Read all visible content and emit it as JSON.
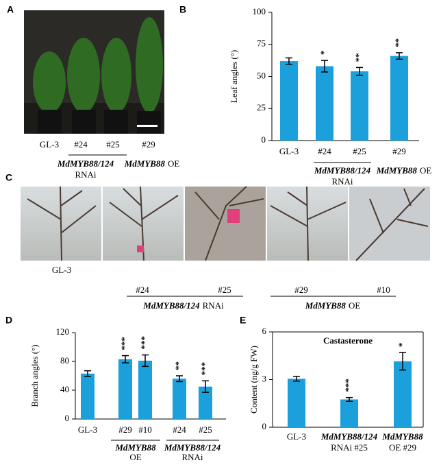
{
  "panels": {
    "A": {
      "label": "A",
      "categories": [
        "GL-3",
        "#24",
        "#25",
        "#29"
      ],
      "groups": [
        {
          "gene": "MdMYB88/124",
          "suffix": "RNAi"
        },
        {
          "gene": "MdMYB88",
          "suffix": "OE"
        }
      ]
    },
    "C": {
      "label": "C",
      "categories": [
        "GL-3",
        "#24",
        "#25",
        "#29",
        "#10"
      ],
      "groups": [
        {
          "gene": "MdMYB88/124",
          "suffix": "RNAi"
        },
        {
          "gene": "MdMYB88",
          "suffix": "OE"
        }
      ]
    }
  },
  "chart_data": [
    {
      "type": "bar",
      "label": "B",
      "ylabel": "Leaf angles (°)",
      "color": "#1ca0dc",
      "categories": [
        "GL-3",
        "#24",
        "#25",
        "#29"
      ],
      "values": [
        62,
        58,
        54,
        66
      ],
      "errors": [
        2.5,
        4.5,
        3,
        2.5
      ],
      "significance": [
        null,
        "*",
        "**",
        "**"
      ],
      "groups": [
        {
          "gene": "MdMYB88/124",
          "suffix": "RNAi"
        },
        {
          "gene": "MdMYB88",
          "suffix": "OE"
        }
      ],
      "ylim": [
        0,
        100
      ],
      "yticks": [
        0,
        25,
        50,
        75,
        100
      ],
      "box": false
    },
    {
      "type": "bar",
      "label": "D",
      "ylabel": "Branch angles (°)",
      "color": "#1ca0dc",
      "categories": [
        "GL-3",
        "#29",
        "#10",
        "#24",
        "#25"
      ],
      "values": [
        63,
        83,
        81,
        56,
        45
      ],
      "errors": [
        4,
        5,
        8,
        4,
        8
      ],
      "significance": [
        null,
        "***",
        "***",
        "**",
        "***"
      ],
      "groups": [
        {
          "gene": "MdMYB88",
          "suffix": "OE"
        },
        {
          "gene": "MdMYB88/124",
          "suffix": "RNAi"
        }
      ],
      "ylim": [
        0,
        120
      ],
      "yticks": [
        0,
        40,
        80,
        120
      ],
      "box": false
    },
    {
      "type": "bar",
      "label": "E",
      "title": "Castasterone",
      "ylabel": "Content  (ng/g FW)",
      "color": "#1ca0dc",
      "categories": [
        "GL-3",
        "MdMYB88/124",
        "MdMYB88"
      ],
      "category_suffixes": [
        null,
        "RNAi #25",
        "OE #29"
      ],
      "values": [
        3.05,
        1.75,
        4.15
      ],
      "errors": [
        0.15,
        0.12,
        0.55
      ],
      "significance": [
        null,
        "***",
        "*"
      ],
      "ylim": [
        0,
        6
      ],
      "yticks": [
        0,
        3,
        6
      ],
      "box": true
    }
  ]
}
